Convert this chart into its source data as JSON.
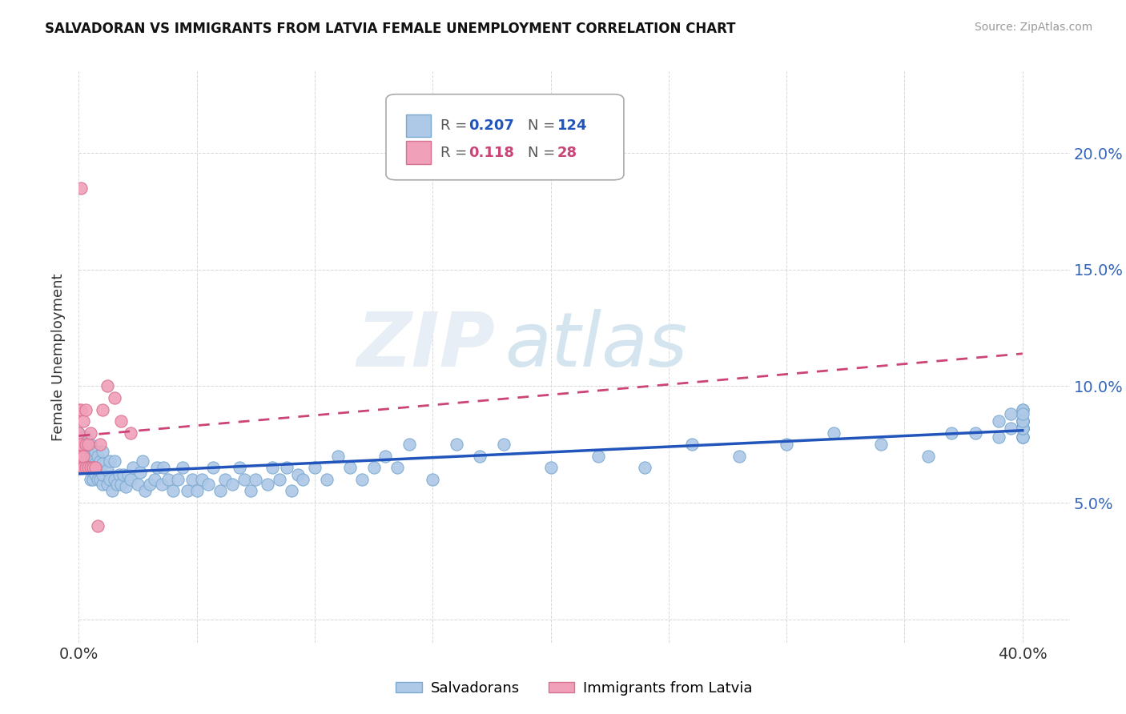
{
  "title": "SALVADORAN VS IMMIGRANTS FROM LATVIA FEMALE UNEMPLOYMENT CORRELATION CHART",
  "source": "Source: ZipAtlas.com",
  "ylabel": "Female Unemployment",
  "xlim": [
    0.0,
    0.42
  ],
  "ylim": [
    -0.01,
    0.235
  ],
  "xtick_positions": [
    0.0,
    0.05,
    0.1,
    0.15,
    0.2,
    0.25,
    0.3,
    0.35,
    0.4
  ],
  "xtick_labels": [
    "0.0%",
    "",
    "",
    "",
    "",
    "",
    "",
    "",
    "40.0%"
  ],
  "ytick_positions": [
    0.0,
    0.05,
    0.1,
    0.15,
    0.2
  ],
  "ytick_labels_right": [
    "",
    "5.0%",
    "10.0%",
    "15.0%",
    "20.0%"
  ],
  "blue_color": "#aec8e8",
  "blue_edge": "#7aaad0",
  "pink_color": "#f0a0b8",
  "pink_edge": "#d87090",
  "trend_blue": "#2255bb",
  "trend_pink": "#cc4477",
  "watermark": "ZIPatlas",
  "legend_r1": "R =  0.207",
  "legend_n1": "N = 124",
  "legend_r2": "R =  0.118",
  "legend_n2": "N =  28",
  "salvadorans_x": [
    0.0,
    0.0,
    0.001,
    0.001,
    0.002,
    0.002,
    0.002,
    0.003,
    0.003,
    0.003,
    0.004,
    0.004,
    0.004,
    0.005,
    0.005,
    0.005,
    0.005,
    0.006,
    0.006,
    0.006,
    0.007,
    0.007,
    0.007,
    0.008,
    0.008,
    0.008,
    0.009,
    0.009,
    0.01,
    0.01,
    0.01,
    0.01,
    0.012,
    0.012,
    0.013,
    0.013,
    0.014,
    0.015,
    0.015,
    0.016,
    0.017,
    0.018,
    0.019,
    0.02,
    0.021,
    0.022,
    0.023,
    0.025,
    0.026,
    0.027,
    0.028,
    0.03,
    0.032,
    0.033,
    0.035,
    0.036,
    0.038,
    0.04,
    0.042,
    0.044,
    0.046,
    0.048,
    0.05,
    0.052,
    0.055,
    0.057,
    0.06,
    0.062,
    0.065,
    0.068,
    0.07,
    0.073,
    0.075,
    0.08,
    0.082,
    0.085,
    0.088,
    0.09,
    0.093,
    0.095,
    0.1,
    0.105,
    0.11,
    0.115,
    0.12,
    0.125,
    0.13,
    0.135,
    0.14,
    0.15,
    0.16,
    0.17,
    0.18,
    0.2,
    0.22,
    0.24,
    0.26,
    0.28,
    0.3,
    0.32,
    0.34,
    0.36,
    0.37,
    0.38,
    0.39,
    0.39,
    0.395,
    0.395,
    0.4,
    0.4,
    0.4,
    0.4,
    0.4,
    0.4,
    0.4,
    0.4,
    0.4,
    0.4,
    0.4,
    0.4,
    0.4,
    0.4,
    0.4,
    0.4
  ],
  "salvadorans_y": [
    0.075,
    0.08,
    0.07,
    0.078,
    0.068,
    0.072,
    0.076,
    0.068,
    0.074,
    0.078,
    0.065,
    0.07,
    0.075,
    0.06,
    0.065,
    0.07,
    0.075,
    0.06,
    0.065,
    0.07,
    0.062,
    0.067,
    0.072,
    0.06,
    0.065,
    0.07,
    0.06,
    0.068,
    0.058,
    0.062,
    0.067,
    0.072,
    0.058,
    0.064,
    0.06,
    0.068,
    0.055,
    0.06,
    0.068,
    0.058,
    0.062,
    0.058,
    0.062,
    0.057,
    0.062,
    0.06,
    0.065,
    0.058,
    0.063,
    0.068,
    0.055,
    0.058,
    0.06,
    0.065,
    0.058,
    0.065,
    0.06,
    0.055,
    0.06,
    0.065,
    0.055,
    0.06,
    0.055,
    0.06,
    0.058,
    0.065,
    0.055,
    0.06,
    0.058,
    0.065,
    0.06,
    0.055,
    0.06,
    0.058,
    0.065,
    0.06,
    0.065,
    0.055,
    0.062,
    0.06,
    0.065,
    0.06,
    0.07,
    0.065,
    0.06,
    0.065,
    0.07,
    0.065,
    0.075,
    0.06,
    0.075,
    0.07,
    0.075,
    0.065,
    0.07,
    0.065,
    0.075,
    0.07,
    0.075,
    0.08,
    0.075,
    0.07,
    0.08,
    0.08,
    0.078,
    0.085,
    0.082,
    0.088,
    0.078,
    0.082,
    0.085,
    0.082,
    0.078,
    0.085,
    0.082,
    0.078,
    0.085,
    0.082,
    0.09,
    0.085,
    0.082,
    0.09,
    0.085,
    0.088
  ],
  "latvia_x": [
    0.0,
    0.0,
    0.0,
    0.0,
    0.0,
    0.001,
    0.001,
    0.001,
    0.001,
    0.002,
    0.002,
    0.002,
    0.003,
    0.003,
    0.003,
    0.004,
    0.004,
    0.005,
    0.005,
    0.006,
    0.007,
    0.008,
    0.009,
    0.01,
    0.012,
    0.015,
    0.018,
    0.022
  ],
  "latvia_y": [
    0.065,
    0.07,
    0.075,
    0.08,
    0.09,
    0.065,
    0.07,
    0.075,
    0.09,
    0.065,
    0.07,
    0.085,
    0.065,
    0.075,
    0.09,
    0.065,
    0.075,
    0.065,
    0.08,
    0.065,
    0.065,
    0.04,
    0.075,
    0.09,
    0.1,
    0.095,
    0.085,
    0.08
  ],
  "latvia_outlier_x": [
    0.001
  ],
  "latvia_outlier_y": [
    0.185
  ]
}
